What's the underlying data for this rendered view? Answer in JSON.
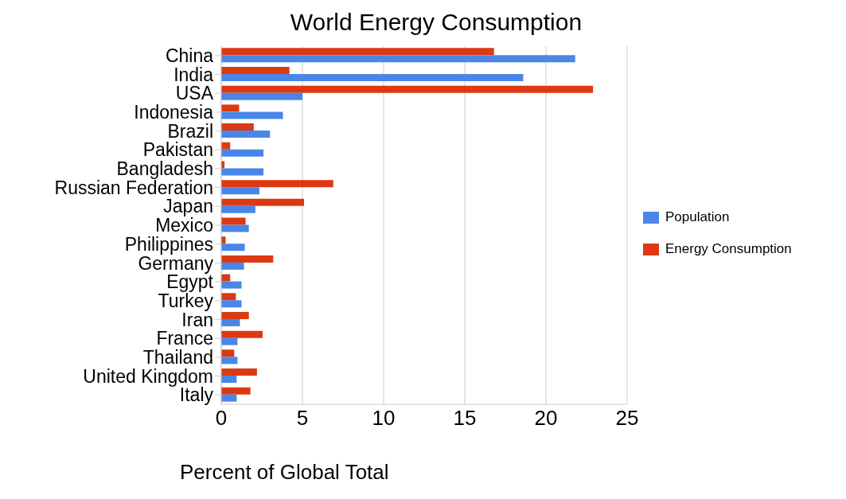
{
  "chart_data": {
    "type": "bar",
    "orientation": "horizontal",
    "title": "World Energy Consumption",
    "xlabel": "Percent of Global Total",
    "categories": [
      "China",
      "India",
      "USA",
      "Indonesia",
      "Brazil",
      "Pakistan",
      "Bangladesh",
      "Russian Federation",
      "Japan",
      "Mexico",
      "Philippines",
      "Germany",
      "Egypt",
      "Turkey",
      "Iran",
      "France",
      "Thailand",
      "United Kingdom",
      "Italy"
    ],
    "series": [
      {
        "name": "Population",
        "color": "#4a86e8",
        "values": [
          21.8,
          18.6,
          5.0,
          3.8,
          3.0,
          2.6,
          2.6,
          2.35,
          2.1,
          1.7,
          1.45,
          1.4,
          1.25,
          1.25,
          1.15,
          1.0,
          1.0,
          0.95,
          0.95
        ]
      },
      {
        "name": "Energy Consumption",
        "color": "#dc3912",
        "values": [
          16.8,
          4.2,
          22.9,
          1.1,
          2.0,
          0.55,
          0.2,
          6.9,
          5.1,
          1.5,
          0.27,
          3.2,
          0.55,
          0.9,
          1.7,
          2.55,
          0.8,
          2.2,
          1.8
        ]
      }
    ],
    "xlim": [
      0,
      25
    ],
    "xticks": [
      0,
      5,
      10,
      15,
      20,
      25
    ],
    "grid": "x",
    "legend": "right"
  }
}
